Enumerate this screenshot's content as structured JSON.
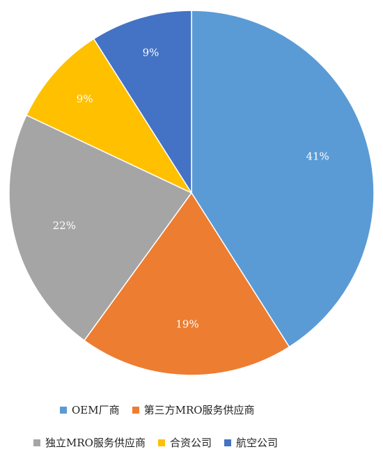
{
  "chart_data": {
    "type": "pie",
    "categories": [
      "OEM厂商",
      "第三方MRO服务供应商",
      "独立MRO服务供应商",
      "合资公司",
      "航空公司"
    ],
    "values": [
      41,
      19,
      22,
      9,
      9
    ],
    "labels": [
      "41%",
      "19%",
      "22%",
      "9%",
      "9%"
    ],
    "colors": [
      "#5B9BD5",
      "#ED7D31",
      "#A5A5A5",
      "#FFC000",
      "#4472C4"
    ],
    "legend_position": "bottom"
  },
  "legend": {
    "row1": [
      "OEM厂商",
      "第三方MRO服务供应商"
    ],
    "row2": [
      "独立MRO服务供应商",
      "合资公司",
      "航空公司"
    ]
  }
}
